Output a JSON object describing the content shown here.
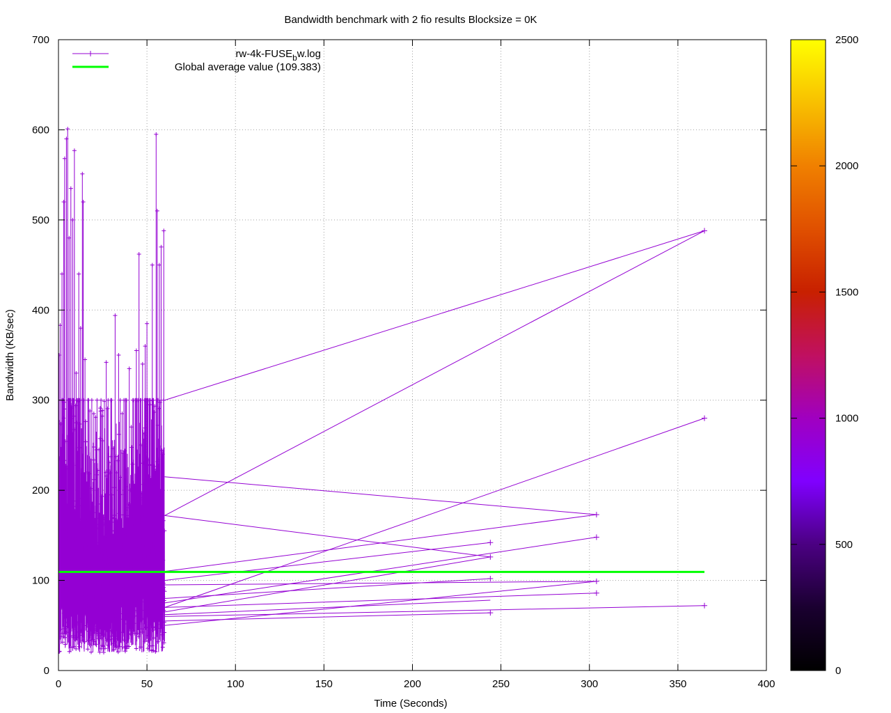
{
  "chart_data": {
    "type": "line",
    "title": "Bandwidth benchmark with 2 fio results  Blocksize = 0K",
    "xlabel": "Time (Seconds)",
    "ylabel": "Bandwidth (KB/sec)",
    "xlim": [
      0,
      400
    ],
    "ylim": [
      0,
      700
    ],
    "x_ticks": [
      0,
      50,
      100,
      150,
      200,
      250,
      300,
      350,
      400
    ],
    "y_ticks": [
      0,
      100,
      200,
      300,
      400,
      500,
      600,
      700
    ],
    "grid": true,
    "legend_position": "top-left",
    "legend": {
      "series_main": "rw-4k-FUSE",
      "series_sub": "b",
      "series_suffix": "w.log",
      "average_label": "Global average value (109.383)"
    },
    "series": [
      {
        "name": "rw-4k-FUSE_bw.log",
        "color": "#9400d3",
        "marker": "plus",
        "dense_region": {
          "x_start": 0,
          "x_end": 60,
          "y_min": 5,
          "y_max": 600
        },
        "peaks": [
          [
            0.3,
            350
          ],
          [
            1,
            383
          ],
          [
            2,
            440
          ],
          [
            3,
            520
          ],
          [
            3.5,
            568
          ],
          [
            4.5,
            590
          ],
          [
            5.2,
            601
          ],
          [
            6,
            480
          ],
          [
            7,
            535
          ],
          [
            8,
            500
          ],
          [
            9,
            577
          ],
          [
            10,
            330
          ],
          [
            11.5,
            440
          ],
          [
            12.5,
            380
          ],
          [
            13.5,
            551
          ],
          [
            14,
            520
          ],
          [
            15,
            345
          ],
          [
            17,
            300
          ],
          [
            20,
            285
          ],
          [
            22,
            230
          ],
          [
            25,
            255
          ],
          [
            27,
            342
          ],
          [
            30,
            300
          ],
          [
            32,
            394
          ],
          [
            34,
            350
          ],
          [
            36,
            285
          ],
          [
            38,
            300
          ],
          [
            40,
            335
          ],
          [
            42,
            300
          ],
          [
            44,
            355
          ],
          [
            45.5,
            462
          ],
          [
            47.5,
            340
          ],
          [
            49,
            360
          ],
          [
            50,
            385
          ],
          [
            53,
            450
          ],
          [
            55.2,
            595
          ],
          [
            55.8,
            510
          ],
          [
            57,
            450
          ],
          [
            58,
            470
          ],
          [
            59.5,
            488
          ]
        ],
        "tail_segments": [
          [
            [
              60,
              300
            ],
            [
              365,
              488
            ]
          ],
          [
            [
              60,
              172
            ],
            [
              365,
              488
            ]
          ],
          [
            [
              60,
              215
            ],
            [
              304,
              173
            ]
          ],
          [
            [
              60,
              172
            ],
            [
              244,
              126
            ]
          ],
          [
            [
              60,
              70
            ],
            [
              365,
              280
            ]
          ],
          [
            [
              60,
              110
            ],
            [
              304,
              173
            ]
          ],
          [
            [
              60,
              100
            ],
            [
              244,
              142
            ]
          ],
          [
            [
              60,
              75
            ],
            [
              304,
              148
            ]
          ],
          [
            [
              60,
              65
            ],
            [
              244,
              126
            ]
          ],
          [
            [
              60,
              80
            ],
            [
              244,
              102
            ]
          ],
          [
            [
              60,
              95
            ],
            [
              304,
              99
            ]
          ],
          [
            [
              60,
              70
            ],
            [
              304,
              86
            ]
          ],
          [
            [
              60,
              60
            ],
            [
              365,
              72
            ]
          ],
          [
            [
              60,
              55
            ],
            [
              244,
              64
            ]
          ],
          [
            [
              60,
              50
            ],
            [
              304,
              99
            ]
          ],
          [
            [
              60,
              62
            ],
            [
              244,
              78
            ]
          ]
        ],
        "tail_points": [
          [
            365,
            488
          ],
          [
            365,
            280
          ],
          [
            365,
            72
          ],
          [
            304,
            173
          ],
          [
            304,
            148
          ],
          [
            304,
            99
          ],
          [
            304,
            86
          ],
          [
            244,
            142
          ],
          [
            244,
            126
          ],
          [
            244,
            102
          ],
          [
            244,
            64
          ]
        ]
      },
      {
        "name": "Global average value (109.383)",
        "color": "#00ff00",
        "x": [
          0,
          365
        ],
        "values": [
          109.383,
          109.383
        ]
      }
    ],
    "colorbar": {
      "ticks": [
        0,
        500,
        1000,
        1500,
        2000,
        2500
      ],
      "range": [
        0,
        2500
      ]
    }
  }
}
